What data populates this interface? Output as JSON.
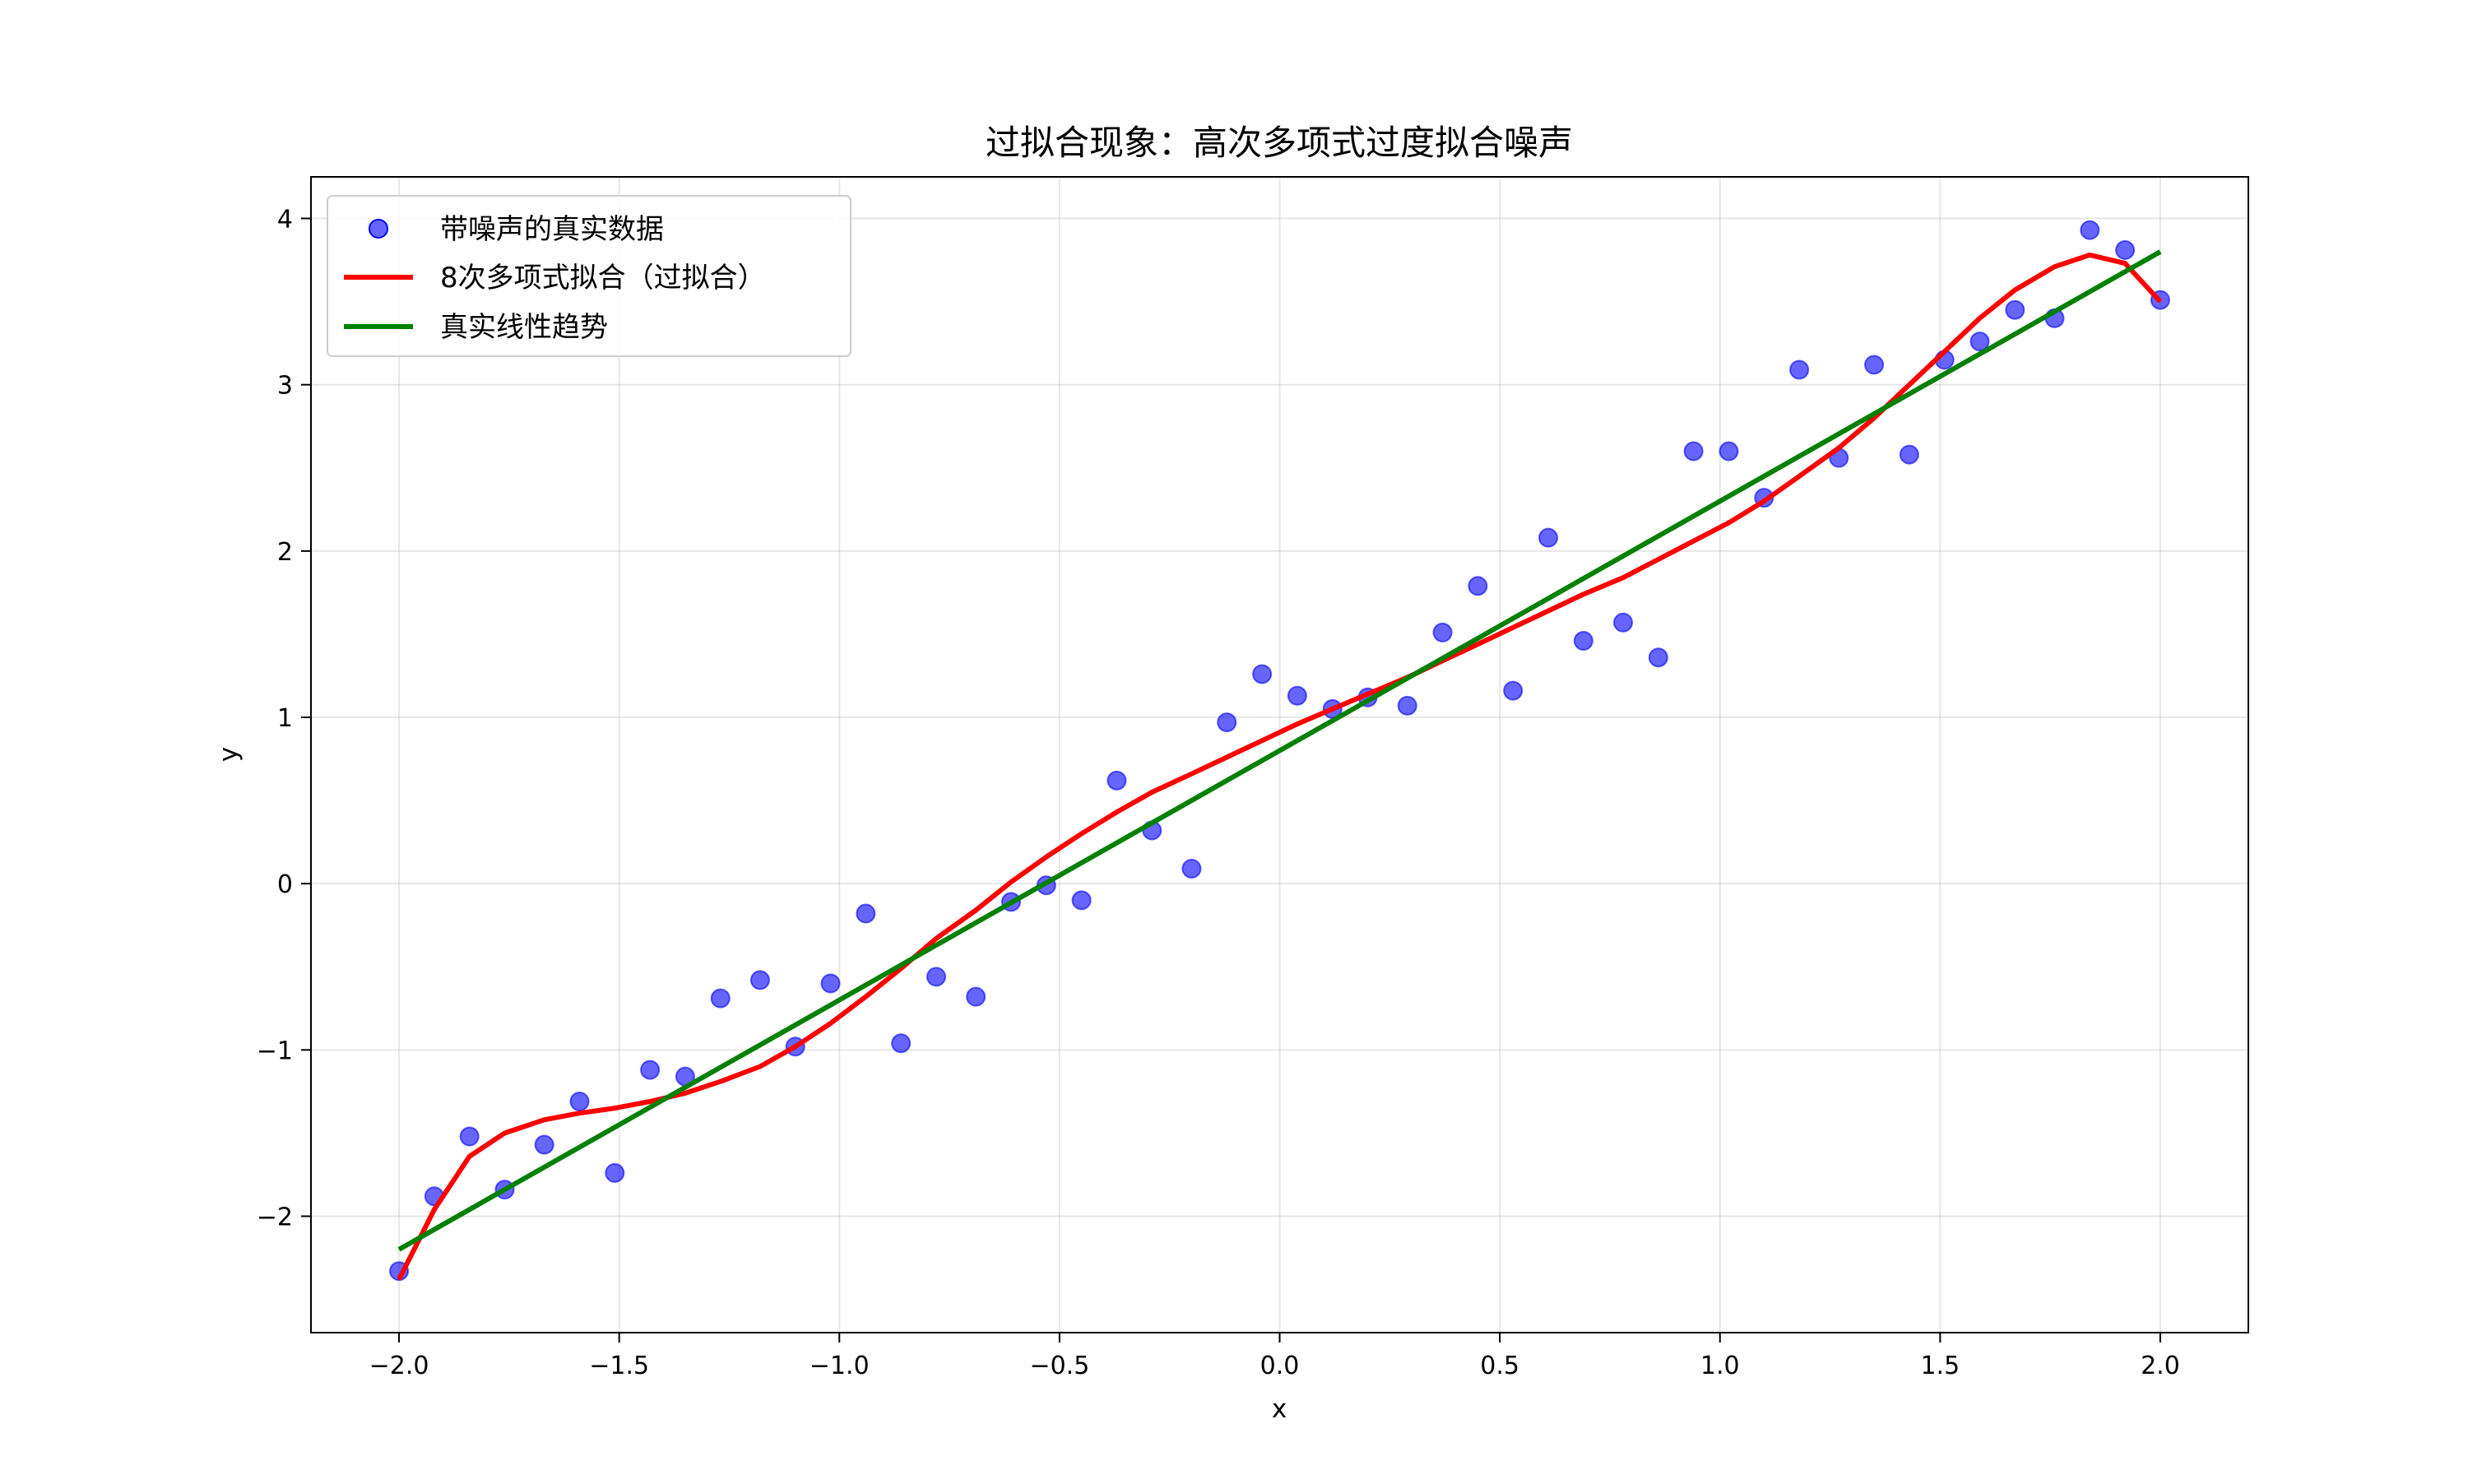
{
  "chart_data": {
    "type": "scatter",
    "title": "过拟合现象：高次多项式过度拟合噪声",
    "xlabel": "x",
    "ylabel": "y",
    "xlim": [
      -2.2,
      2.2
    ],
    "ylim": [
      -2.7,
      4.25
    ],
    "xticks": [
      -2.0,
      -1.5,
      -1.0,
      -0.5,
      0.0,
      0.5,
      1.0,
      1.5,
      2.0
    ],
    "xtick_labels": [
      "−2.0",
      "−1.5",
      "−1.0",
      "−0.5",
      "0.0",
      "0.5",
      "1.0",
      "1.5",
      "2.0"
    ],
    "yticks": [
      -2,
      -1,
      0,
      1,
      2,
      3,
      4
    ],
    "ytick_labels": [
      "−2",
      "−1",
      "0",
      "1",
      "2",
      "3",
      "4"
    ],
    "grid": true,
    "legend_position": "top-left",
    "series": [
      {
        "name": "带噪声的真实数据",
        "kind": "scatter",
        "color": "#0000ff",
        "x": [
          -2.0,
          -1.92,
          -1.84,
          -1.76,
          -1.67,
          -1.59,
          -1.51,
          -1.43,
          -1.35,
          -1.27,
          -1.18,
          -1.1,
          -1.02,
          -0.94,
          -0.86,
          -0.78,
          -0.69,
          -0.61,
          -0.53,
          -0.45,
          -0.37,
          -0.29,
          -0.2,
          -0.12,
          -0.04,
          0.04,
          0.12,
          0.2,
          0.29,
          0.37,
          0.45,
          0.53,
          0.61,
          0.69,
          0.78,
          0.86,
          0.94,
          1.02,
          1.1,
          1.18,
          1.27,
          1.35,
          1.43,
          1.51,
          1.59,
          1.67,
          1.76,
          1.84,
          1.92,
          2.0
        ],
        "y": [
          -2.33,
          -1.88,
          -1.52,
          -1.84,
          -1.57,
          -1.31,
          -1.74,
          -1.12,
          -1.16,
          -0.69,
          -0.58,
          -0.98,
          -0.6,
          -0.18,
          -0.96,
          -0.56,
          -0.68,
          -0.11,
          -0.01,
          -0.1,
          0.62,
          0.32,
          0.09,
          0.97,
          1.26,
          1.13,
          1.05,
          1.12,
          1.07,
          1.51,
          1.79,
          1.16,
          2.08,
          1.46,
          1.57,
          1.36,
          2.6,
          2.6,
          2.32,
          3.09,
          2.56,
          3.12,
          2.58,
          3.15,
          3.26,
          3.45,
          3.4,
          3.93,
          3.81,
          3.51
        ]
      },
      {
        "name": "8次多项式拟合（过拟合）",
        "kind": "line",
        "color": "#ff0000",
        "x": [
          -2.0,
          -1.92,
          -1.84,
          -1.76,
          -1.67,
          -1.59,
          -1.51,
          -1.43,
          -1.35,
          -1.27,
          -1.18,
          -1.1,
          -1.02,
          -0.94,
          -0.86,
          -0.78,
          -0.69,
          -0.61,
          -0.53,
          -0.45,
          -0.37,
          -0.29,
          -0.2,
          -0.12,
          -0.04,
          0.04,
          0.12,
          0.2,
          0.29,
          0.37,
          0.45,
          0.53,
          0.61,
          0.69,
          0.78,
          0.86,
          0.94,
          1.02,
          1.1,
          1.18,
          1.27,
          1.35,
          1.43,
          1.51,
          1.59,
          1.67,
          1.76,
          1.84,
          1.92,
          2.0
        ],
        "y": [
          -2.38,
          -1.96,
          -1.64,
          -1.5,
          -1.42,
          -1.38,
          -1.35,
          -1.31,
          -1.26,
          -1.19,
          -1.1,
          -0.98,
          -0.84,
          -0.68,
          -0.51,
          -0.33,
          -0.16,
          0.01,
          0.16,
          0.3,
          0.43,
          0.55,
          0.66,
          0.76,
          0.86,
          0.96,
          1.05,
          1.14,
          1.24,
          1.34,
          1.44,
          1.54,
          1.64,
          1.74,
          1.84,
          1.95,
          2.06,
          2.17,
          2.3,
          2.45,
          2.62,
          2.8,
          3.0,
          3.2,
          3.4,
          3.57,
          3.71,
          3.78,
          3.73,
          3.5
        ]
      },
      {
        "name": "真实线性趋势",
        "kind": "line",
        "color": "#008000",
        "x": [
          -2.0,
          2.0
        ],
        "y": [
          -2.2,
          3.8
        ]
      }
    ]
  }
}
